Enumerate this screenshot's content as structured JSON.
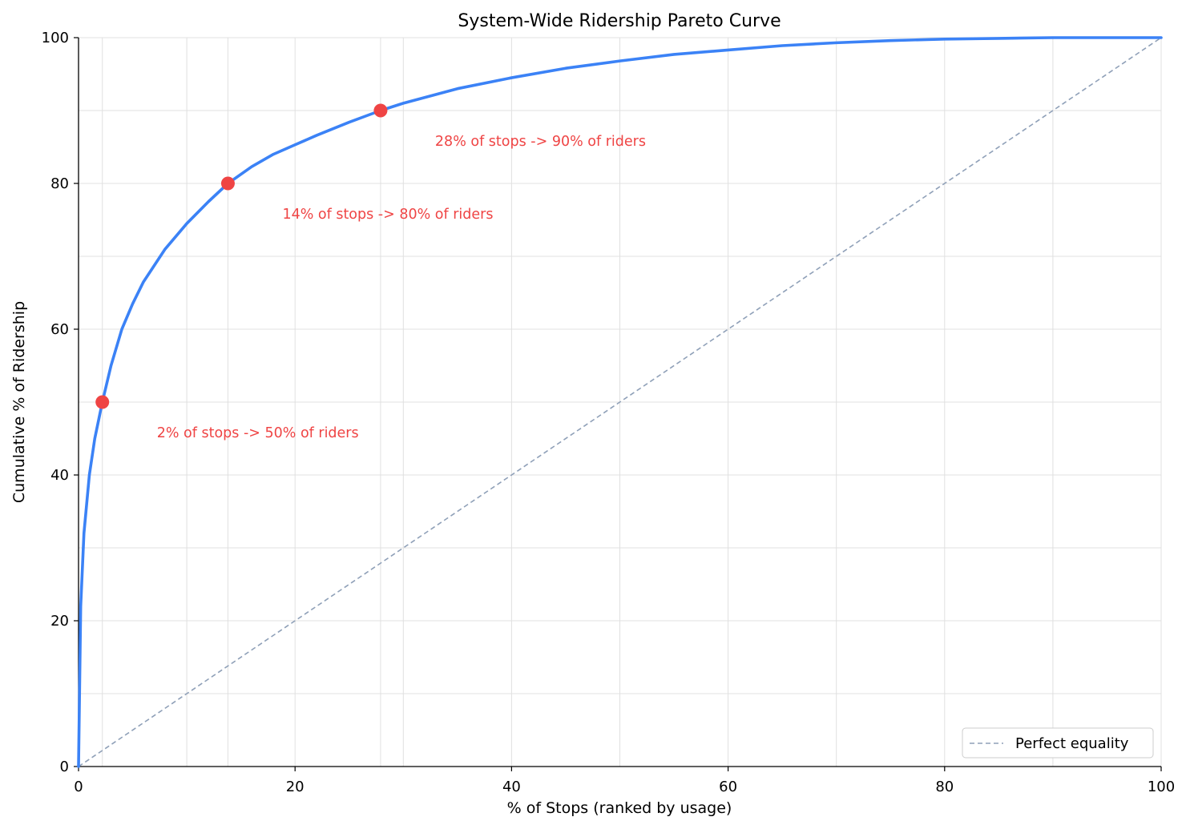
{
  "chart_data": {
    "type": "line",
    "title": "System-Wide Ridership Pareto Curve",
    "xlabel": "% of Stops (ranked by usage)",
    "ylabel": "Cumulative % of Ridership",
    "xlim": [
      0,
      100
    ],
    "ylim": [
      0,
      100
    ],
    "x_ticks": [
      0,
      20,
      40,
      60,
      80,
      100
    ],
    "y_ticks": [
      0,
      20,
      40,
      60,
      80,
      100
    ],
    "grid": true,
    "legend_position": "bottom-right",
    "colors": {
      "curve": "#3b82f6",
      "markers": "#ef4444",
      "equality": "#8fa0b8",
      "grid": "#e0e0e0",
      "annotation": "#ef4444"
    },
    "series": [
      {
        "style": "solid",
        "x": [
          0,
          0.2,
          0.5,
          1,
          1.5,
          2.2,
          3,
          4,
          5,
          6,
          8,
          10,
          12,
          13.8,
          16,
          18,
          20,
          22,
          25,
          27.9,
          30,
          35,
          40,
          45,
          50,
          55,
          60,
          65,
          70,
          75,
          80,
          85,
          90,
          95,
          100
        ],
        "y": [
          0,
          22,
          32,
          40,
          45,
          50,
          55,
          60,
          63.5,
          66.5,
          71,
          74.5,
          77.5,
          80,
          82.3,
          84,
          85.3,
          86.6,
          88.4,
          90,
          91,
          93,
          94.5,
          95.8,
          96.8,
          97.7,
          98.3,
          98.9,
          99.3,
          99.6,
          99.8,
          99.9,
          100,
          100,
          100
        ]
      },
      {
        "name": "Perfect equality",
        "style": "dashed",
        "x": [
          0,
          100
        ],
        "y": [
          0,
          100
        ]
      }
    ],
    "highlight_points": [
      {
        "x": 2.2,
        "y": 50,
        "label": "2% of stops -> 50% of riders"
      },
      {
        "x": 13.8,
        "y": 80,
        "label": "14% of stops -> 80% of riders"
      },
      {
        "x": 27.9,
        "y": 90,
        "label": "28% of stops -> 90% of riders"
      }
    ]
  }
}
